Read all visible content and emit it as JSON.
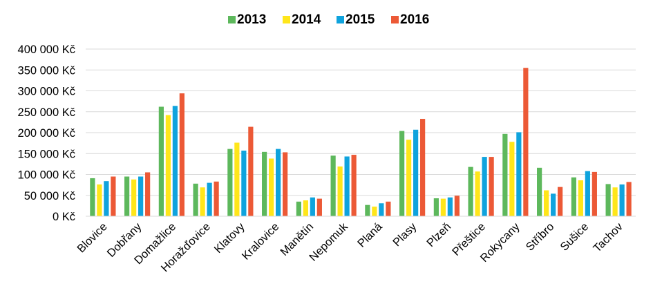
{
  "chart_data": {
    "type": "bar",
    "title": "",
    "xlabel": "",
    "ylabel": "",
    "ylim": [
      0,
      400000
    ],
    "y_tick_step": 50000,
    "y_tick_labels": [
      "0 Kč",
      "50 000 Kč",
      "100 000 Kč",
      "150 000 Kč",
      "200 000 Kč",
      "250 000 Kč",
      "300 000 Kč",
      "350 000 Kč",
      "400 000 Kč"
    ],
    "grid": true,
    "legend_position": "top-center",
    "categories": [
      "Blovice",
      "Dobřany",
      "Domažlice",
      "Horažďovice",
      "Klatovy",
      "Kralovice",
      "Manětín",
      "Nepomuk",
      "Planá",
      "Plasy",
      "Plzeň",
      "Přeštice",
      "Rokycany",
      "Stříbro",
      "Sušice",
      "Tachov"
    ],
    "series": [
      {
        "name": "2013",
        "color": "#5DB85C",
        "values": [
          91000,
          95000,
          262000,
          78000,
          161000,
          154000,
          35000,
          145000,
          27000,
          204000,
          43000,
          118000,
          197000,
          116000,
          93000,
          77000
        ]
      },
      {
        "name": "2014",
        "color": "#FFE61A",
        "values": [
          76000,
          88000,
          242000,
          69000,
          176000,
          138000,
          38000,
          119000,
          23000,
          183000,
          42000,
          107000,
          178000,
          62000,
          86000,
          69000
        ]
      },
      {
        "name": "2015",
        "color": "#0FA3DD",
        "values": [
          84000,
          95000,
          264000,
          80000,
          157000,
          161000,
          45000,
          143000,
          31000,
          207000,
          45000,
          142000,
          201000,
          54000,
          108000,
          76000
        ]
      },
      {
        "name": "2016",
        "color": "#EC5936",
        "values": [
          95000,
          105000,
          294000,
          83000,
          214000,
          153000,
          42000,
          147000,
          35000,
          233000,
          49000,
          142000,
          355000,
          70000,
          106000,
          82000
        ]
      }
    ]
  }
}
